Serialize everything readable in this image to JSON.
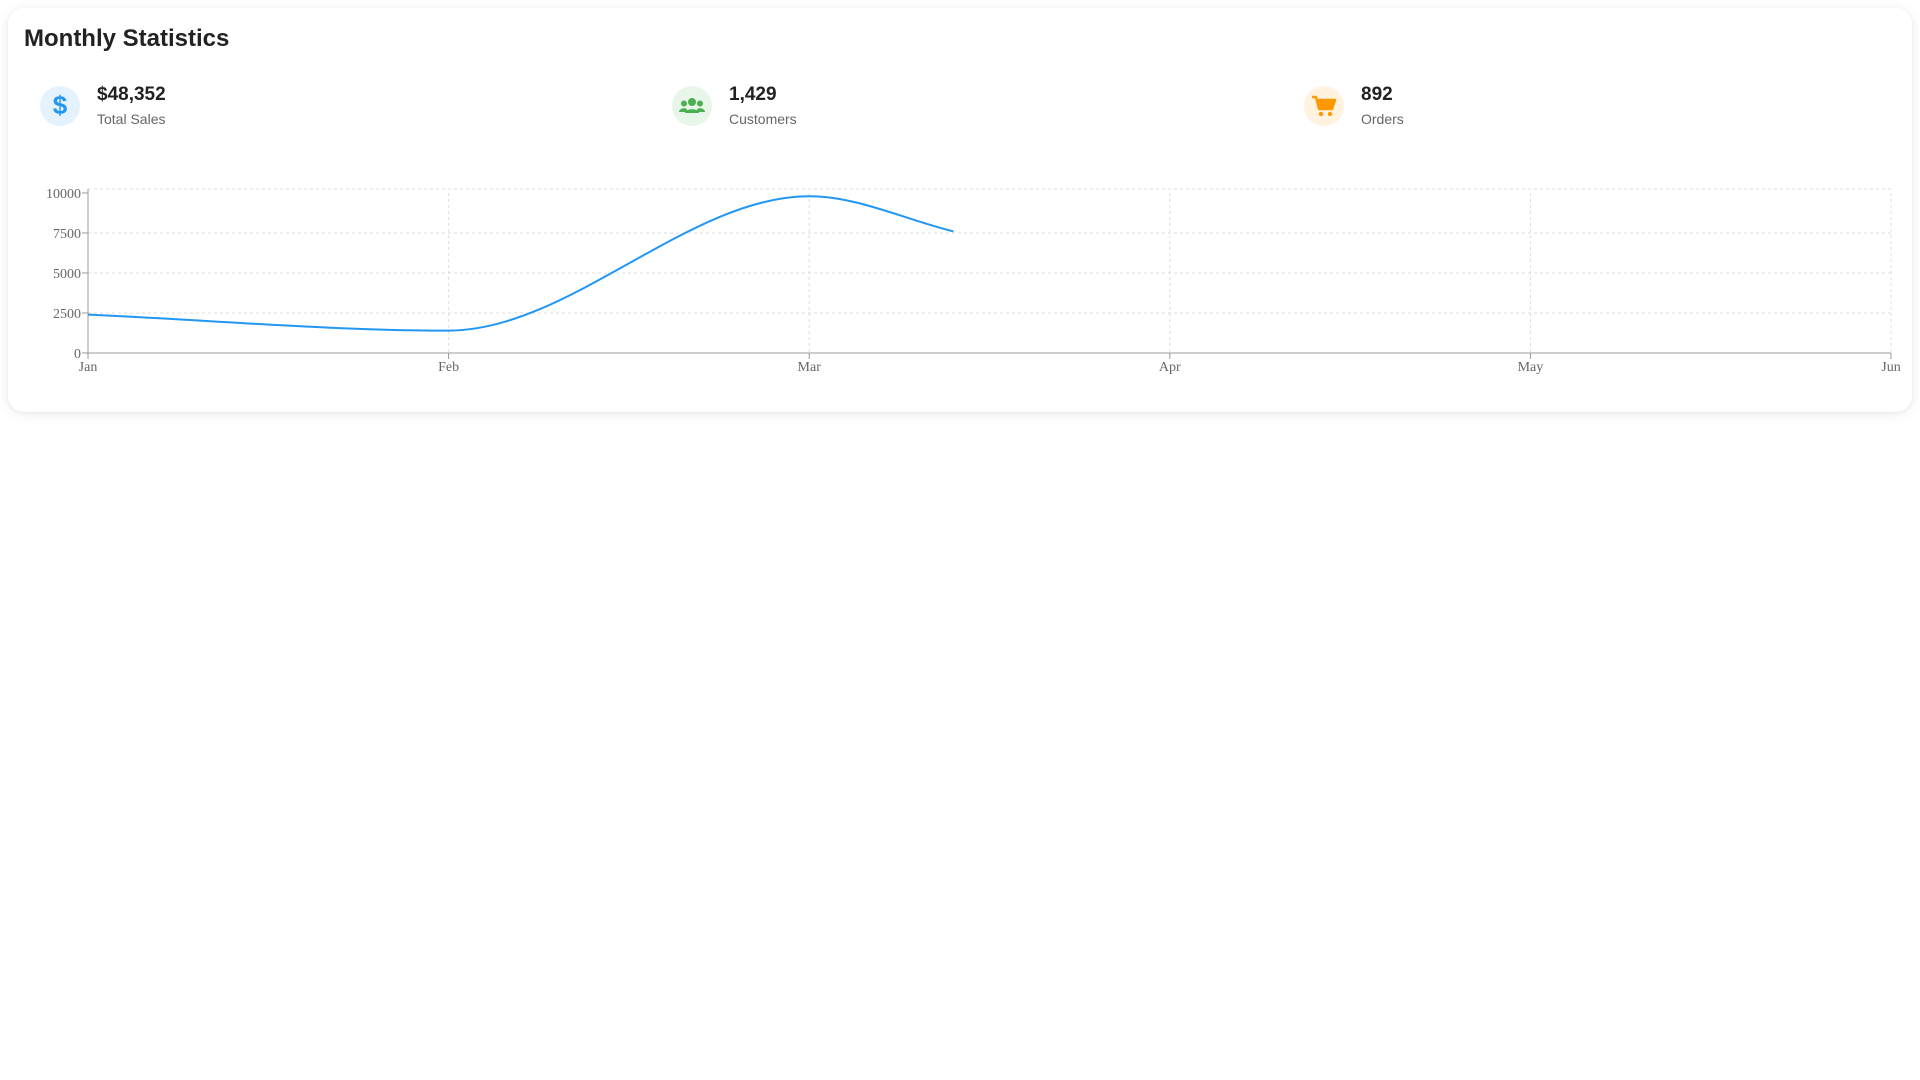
{
  "card": {
    "title": "Monthly Statistics"
  },
  "stats": [
    {
      "value": "$48,352",
      "label": "Total Sales",
      "icon": "dollar-icon",
      "color": "#2196F3",
      "bg": "#E3F2FD"
    },
    {
      "value": "1,429",
      "label": "Customers",
      "icon": "users-icon",
      "color": "#4CAF50",
      "bg": "#E8F5E9"
    },
    {
      "value": "892",
      "label": "Orders",
      "icon": "cart-icon",
      "color": "#FF9800",
      "bg": "#FFF3E0"
    }
  ],
  "chart_data": {
    "type": "line",
    "title": "",
    "xlabel": "",
    "ylabel": "",
    "categories": [
      "Jan",
      "Feb",
      "Mar",
      "Apr",
      "May",
      "Jun"
    ],
    "ylim": [
      0,
      10000
    ],
    "yticks": [
      0,
      2500,
      5000,
      7500,
      10000
    ],
    "grid": true,
    "line_color": "#2196F3",
    "series": [
      {
        "points": [
          {
            "x": "Jan",
            "y": 2400
          },
          {
            "x": "Feb",
            "y": 1400
          },
          {
            "x": "Mar",
            "y": 9800
          },
          {
            "x": "Mar 13",
            "y": 7600
          }
        ]
      }
    ]
  }
}
